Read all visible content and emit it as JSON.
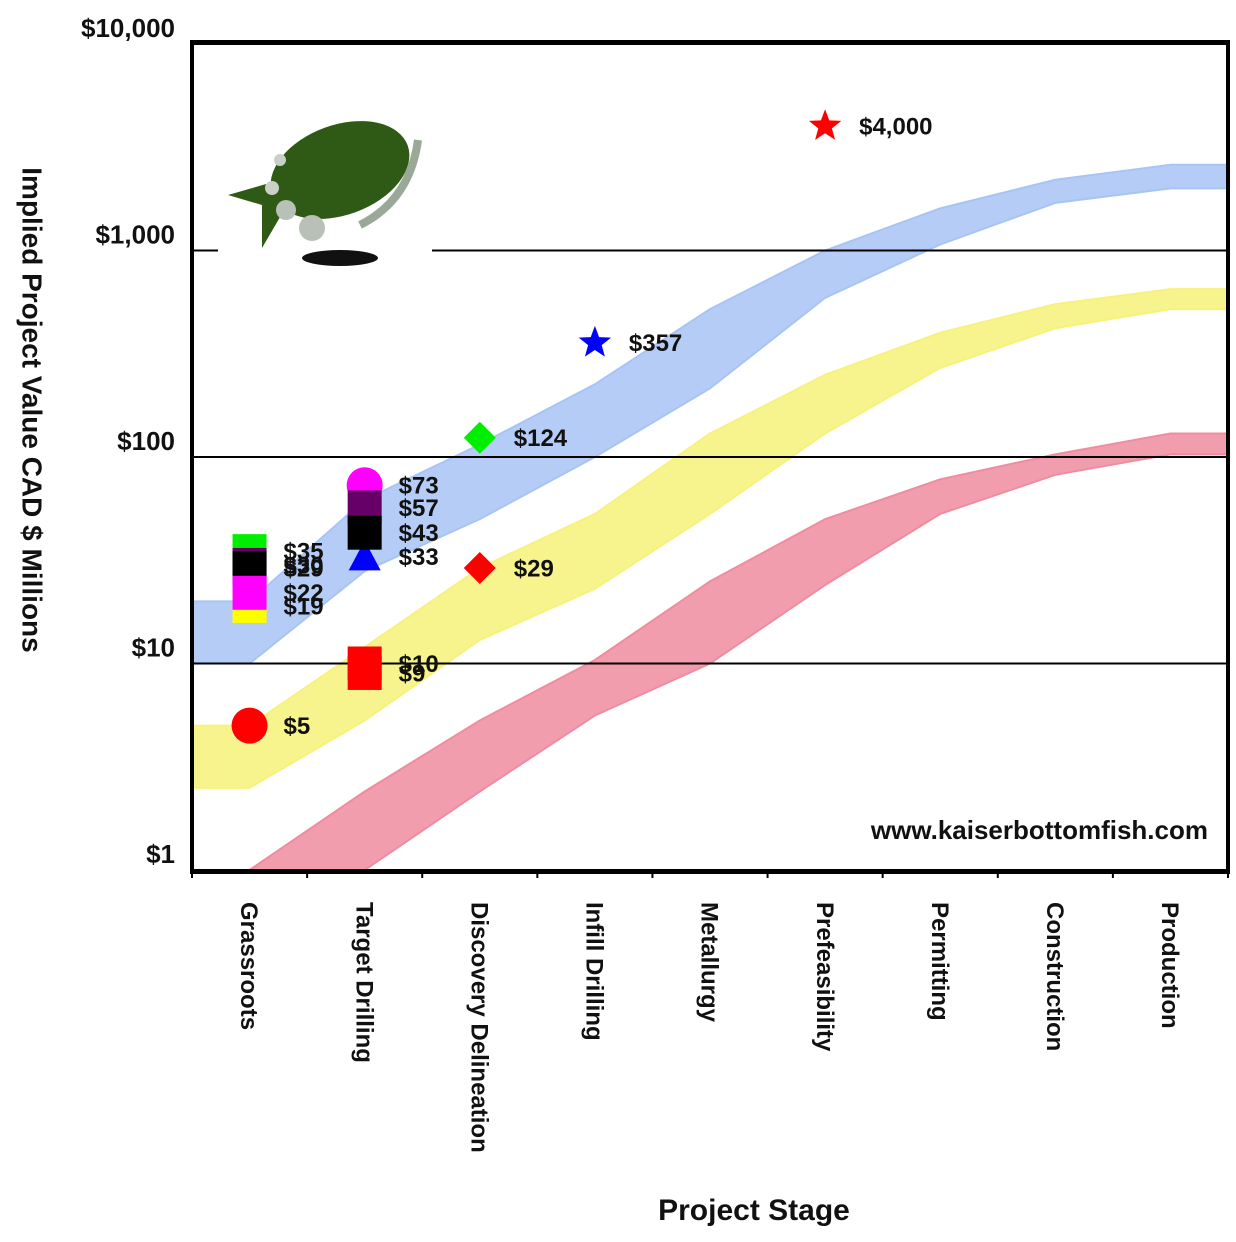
{
  "chart_data": {
    "type": "scatter",
    "y_axis_label": "Implied Project Value CAD $ Millions",
    "x_axis_label": "Project Stage",
    "watermark": "www.kaiserbottomfish.com",
    "log_scale": true,
    "grid": true,
    "categories": [
      "Grassroots",
      "Target Drilling",
      "Discovery Delineation",
      "Infill Drilling",
      "Metallurgy",
      "Prefeasibility",
      "Permitting",
      "Construction",
      "Production"
    ],
    "ylim": [
      1,
      10000
    ],
    "yticks": [
      {
        "value": 1,
        "label": "$1"
      },
      {
        "value": 10,
        "label": "$10"
      },
      {
        "value": 100,
        "label": "$100"
      },
      {
        "value": 1000,
        "label": "$1,000"
      },
      {
        "value": 10000,
        "label": "$10,000"
      }
    ],
    "bands": [
      {
        "color": "#a8c4f4",
        "low": [
          10,
          28,
          50,
          100,
          215,
          590,
          1070,
          1700,
          2000
        ],
        "high": [
          20,
          62,
          115,
          225,
          520,
          1000,
          1600,
          2200,
          2600
        ]
      },
      {
        "color": "#f6f27a",
        "low": [
          2.5,
          5.3,
          13,
          23,
          53,
          130,
          270,
          420,
          520
        ],
        "high": [
          5,
          12,
          29,
          53,
          130,
          250,
          400,
          550,
          650
        ]
      },
      {
        "color": "#f08ca0",
        "low": [
          1,
          1,
          2.4,
          5.6,
          10,
          24,
          53,
          82,
          103
        ],
        "high": [
          1,
          2.4,
          5.3,
          10.4,
          25,
          50,
          78,
          103,
          130
        ]
      }
    ],
    "points": [
      {
        "category": "Grassroots",
        "value": 35,
        "value_label": "$35",
        "color": "#00ee00",
        "marker": "square"
      },
      {
        "category": "Grassroots",
        "value": 30,
        "value_label": "$30",
        "color": "#660066",
        "marker": "square"
      },
      {
        "category": "Grassroots",
        "value": 29,
        "value_label": "$29",
        "color": "#000000",
        "marker": "square"
      },
      {
        "category": "Grassroots",
        "value": 19,
        "value_label": "$19",
        "color": "#ffff00",
        "marker": "square"
      },
      {
        "category": "Grassroots",
        "value": 22,
        "value_label": "$22",
        "color": "#ff00ff",
        "marker": "square"
      },
      {
        "category": "Grassroots",
        "value": 5,
        "value_label": "$5",
        "color": "#ff0000",
        "marker": "circle"
      },
      {
        "category": "Target Drilling",
        "value": 73,
        "value_label": "$73",
        "color": "#ff00ff",
        "marker": "circle"
      },
      {
        "category": "Target Drilling",
        "value": 57,
        "value_label": "$57",
        "color": "#660066",
        "marker": "square"
      },
      {
        "category": "Target Drilling",
        "value": 33,
        "value_label": "$33",
        "color": "#0000ff",
        "marker": "triangle"
      },
      {
        "category": "Target Drilling",
        "value": 43,
        "value_label": "$43",
        "color": "#000000",
        "marker": "square"
      },
      {
        "category": "Target Drilling",
        "value": 9,
        "value_label": "$9",
        "color": "#ff0000",
        "marker": "square"
      },
      {
        "category": "Target Drilling",
        "value": 10,
        "value_label": "$10",
        "color": "#ff0000",
        "marker": "square"
      },
      {
        "category": "Discovery Delineation",
        "value": 124,
        "value_label": "$124",
        "color": "#00ee00",
        "marker": "diamond"
      },
      {
        "category": "Discovery Delineation",
        "value": 29,
        "value_label": "$29",
        "color": "#ff0000",
        "marker": "diamond"
      },
      {
        "category": "Infill Drilling",
        "value": 357,
        "value_label": "$357",
        "color": "#0000ff",
        "marker": "star"
      },
      {
        "category": "Prefeasibility",
        "value": 4000,
        "value_label": "$4,000",
        "color": "#ff0000",
        "marker": "star"
      }
    ]
  }
}
